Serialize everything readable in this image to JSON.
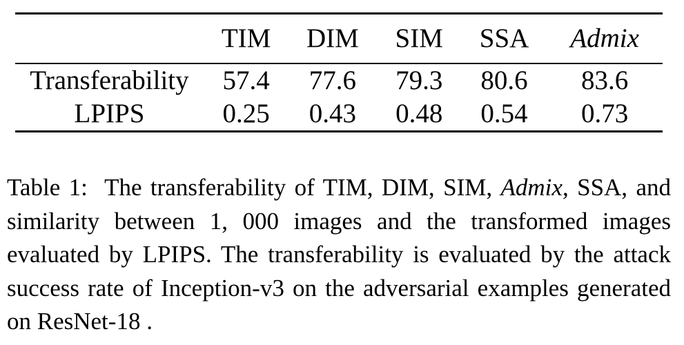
{
  "table": {
    "columns": [
      "",
      "TIM",
      "DIM",
      "SIM",
      "SSA",
      "Admix"
    ],
    "italic_columns": [
      "Admix"
    ],
    "rows": [
      {
        "label": "Transferability",
        "values": [
          "57.4",
          "77.6",
          "79.3",
          "80.6",
          "83.6"
        ]
      },
      {
        "label": "LPIPS",
        "values": [
          "0.25",
          "0.43",
          "0.48",
          "0.54",
          "0.73"
        ]
      }
    ]
  },
  "caption": {
    "label": "Table 1:",
    "text_part1": "The transferability of TIM, DIM, SIM,",
    "admix": "Admix",
    "text_part2": ", SSA, and similarity between 1, 000 images and the transformed images evaluated by LPIPS. The transferability is evaluated by the attack success rate of Inception-v3 on the adversarial examples generated on ResNet-18 ."
  }
}
